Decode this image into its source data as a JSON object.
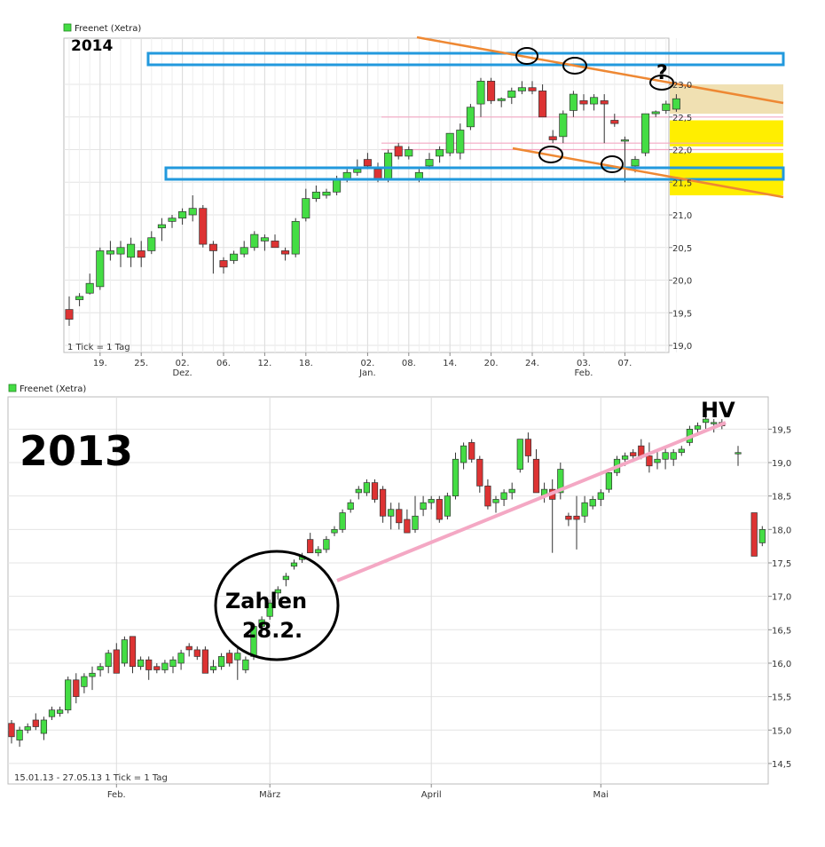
{
  "colors": {
    "up": "#44dd44",
    "down": "#dd3333",
    "blue": "#2299dd",
    "orange": "#ee8833",
    "pink": "#f4a8c4",
    "yellow": "#ffee00",
    "tan": "#eeddaa"
  },
  "chart_data": [
    {
      "type": "candlestick",
      "legend": "Freenet (Xetra)",
      "year_label": "2014",
      "footnote": "1 Tick = 1 Tag",
      "ylim": [
        19.0,
        23.3
      ],
      "yticks": [
        "19,0",
        "19,5",
        "20,0",
        "20,5",
        "21,0",
        "21,5",
        "22,0",
        "22,5",
        "23,0"
      ],
      "xticks": [
        {
          "i": 3,
          "label": "19."
        },
        {
          "i": 7,
          "label": "25."
        },
        {
          "i": 11,
          "label": "02.",
          "sub": "Dez."
        },
        {
          "i": 15,
          "label": "06."
        },
        {
          "i": 19,
          "label": "12."
        },
        {
          "i": 23,
          "label": "18."
        },
        {
          "i": 29,
          "label": "02.",
          "sub": "Jan."
        },
        {
          "i": 33,
          "label": "08."
        },
        {
          "i": 37,
          "label": "14."
        },
        {
          "i": 41,
          "label": "20."
        },
        {
          "i": 45,
          "label": "24."
        },
        {
          "i": 50,
          "label": "03.",
          "sub": "Feb."
        },
        {
          "i": 54,
          "label": "07."
        }
      ],
      "candles": [
        [
          19.55,
          19.75,
          19.3,
          19.4
        ],
        [
          19.7,
          19.8,
          19.6,
          19.75
        ],
        [
          19.8,
          20.1,
          19.78,
          19.95
        ],
        [
          19.9,
          20.5,
          19.85,
          20.45
        ],
        [
          20.4,
          20.6,
          20.3,
          20.45
        ],
        [
          20.4,
          20.6,
          20.2,
          20.5
        ],
        [
          20.35,
          20.65,
          20.2,
          20.55
        ],
        [
          20.45,
          20.6,
          20.2,
          20.35
        ],
        [
          20.45,
          20.75,
          20.4,
          20.65
        ],
        [
          20.8,
          20.95,
          20.6,
          20.85
        ],
        [
          20.9,
          21.0,
          20.8,
          20.95
        ],
        [
          20.95,
          21.1,
          20.85,
          21.05
        ],
        [
          21.0,
          21.3,
          20.9,
          21.1
        ],
        [
          21.1,
          21.15,
          20.5,
          20.55
        ],
        [
          20.55,
          20.6,
          20.1,
          20.45
        ],
        [
          20.3,
          20.35,
          20.1,
          20.2
        ],
        [
          20.3,
          20.45,
          20.25,
          20.4
        ],
        [
          20.4,
          20.6,
          20.35,
          20.5
        ],
        [
          20.5,
          20.75,
          20.45,
          20.7
        ],
        [
          20.6,
          20.7,
          20.45,
          20.65
        ],
        [
          20.6,
          20.7,
          20.5,
          20.5
        ],
        [
          20.45,
          20.5,
          20.3,
          20.4
        ],
        [
          20.4,
          20.95,
          20.35,
          20.9
        ],
        [
          20.95,
          21.4,
          20.9,
          21.25
        ],
        [
          21.25,
          21.45,
          21.2,
          21.35
        ],
        [
          21.3,
          21.4,
          21.25,
          21.35
        ],
        [
          21.35,
          21.6,
          21.3,
          21.55
        ],
        [
          21.55,
          21.7,
          21.5,
          21.65
        ],
        [
          21.65,
          21.85,
          21.6,
          21.7
        ],
        [
          21.85,
          21.95,
          21.7,
          21.75
        ],
        [
          21.7,
          21.8,
          21.5,
          21.55
        ],
        [
          21.55,
          22.0,
          21.5,
          21.95
        ],
        [
          22.05,
          22.1,
          21.85,
          21.9
        ],
        [
          21.9,
          22.05,
          21.85,
          22.0
        ],
        [
          21.55,
          21.7,
          21.5,
          21.65
        ],
        [
          21.75,
          21.95,
          21.7,
          21.85
        ],
        [
          21.9,
          22.05,
          21.8,
          22.0
        ],
        [
          21.95,
          22.25,
          21.9,
          22.25
        ],
        [
          21.95,
          22.4,
          21.85,
          22.3
        ],
        [
          22.35,
          22.7,
          22.3,
          22.65
        ],
        [
          22.7,
          23.1,
          22.5,
          23.05
        ],
        [
          23.05,
          23.1,
          22.7,
          22.75
        ],
        [
          22.75,
          22.8,
          22.65,
          22.78
        ],
        [
          22.8,
          22.95,
          22.7,
          22.9
        ],
        [
          22.9,
          23.05,
          22.85,
          22.95
        ],
        [
          22.95,
          23.05,
          22.85,
          22.9
        ],
        [
          22.9,
          23.0,
          22.5,
          22.5
        ],
        [
          22.2,
          22.3,
          22.1,
          22.15
        ],
        [
          22.2,
          22.6,
          22.1,
          22.55
        ],
        [
          22.6,
          22.9,
          22.5,
          22.85
        ],
        [
          22.75,
          22.85,
          22.6,
          22.7
        ],
        [
          22.7,
          22.85,
          22.6,
          22.8
        ],
        [
          22.75,
          22.85,
          22.1,
          22.7
        ],
        [
          22.45,
          22.55,
          22.35,
          22.4
        ],
        [
          22.15,
          22.2,
          21.5,
          22.15
        ],
        [
          21.75,
          21.9,
          21.65,
          21.85
        ],
        [
          21.95,
          22.55,
          21.9,
          22.55
        ],
        [
          22.55,
          22.6,
          22.5,
          22.58
        ],
        [
          22.6,
          22.75,
          22.55,
          22.7
        ],
        [
          22.62,
          22.85,
          22.58,
          22.78
        ]
      ],
      "circle_marks": [
        "",
        "",
        "",
        "",
        "",
        ""
      ],
      "question_mark": "?"
    },
    {
      "type": "candlestick",
      "legend": "Freenet (Xetra)",
      "year_label": "2013",
      "footnote": "15.01.13 - 27.05.13   1 Tick = 1 Tag",
      "ylim": [
        14.3,
        19.85
      ],
      "yticks": [
        "14,5",
        "15,0",
        "15,5",
        "16,0",
        "16,5",
        "17,0",
        "17,5",
        "18,0",
        "18,5",
        "19,0",
        "19,5"
      ],
      "xticks": [
        {
          "i": 13,
          "label": "Feb."
        },
        {
          "i": 32,
          "label": "März"
        },
        {
          "i": 52,
          "label": "April"
        },
        {
          "i": 73,
          "label": "Mai"
        }
      ],
      "annotation_circle_text": [
        "Zahlen",
        "28.2."
      ],
      "hv_label": "HV",
      "candles": [
        [
          15.1,
          15.15,
          14.8,
          14.9
        ],
        [
          14.85,
          15.05,
          14.75,
          15.0
        ],
        [
          15.0,
          15.1,
          14.95,
          15.05
        ],
        [
          15.15,
          15.25,
          15.0,
          15.05
        ],
        [
          14.95,
          15.2,
          14.85,
          15.15
        ],
        [
          15.2,
          15.35,
          15.15,
          15.3
        ],
        [
          15.25,
          15.35,
          15.2,
          15.3
        ],
        [
          15.3,
          15.8,
          15.25,
          15.75
        ],
        [
          15.75,
          15.85,
          15.4,
          15.5
        ],
        [
          15.65,
          15.85,
          15.55,
          15.8
        ],
        [
          15.8,
          15.95,
          15.6,
          15.85
        ],
        [
          15.9,
          16.0,
          15.8,
          15.95
        ],
        [
          15.95,
          16.2,
          15.85,
          16.15
        ],
        [
          16.2,
          16.3,
          15.85,
          15.85
        ],
        [
          16.0,
          16.4,
          15.95,
          16.35
        ],
        [
          16.4,
          16.4,
          15.85,
          15.95
        ],
        [
          15.95,
          16.1,
          15.9,
          16.05
        ],
        [
          16.05,
          16.1,
          15.75,
          15.9
        ],
        [
          15.95,
          16.0,
          15.85,
          15.9
        ],
        [
          15.9,
          16.05,
          15.85,
          16.0
        ],
        [
          15.95,
          16.1,
          15.85,
          16.05
        ],
        [
          16.0,
          16.2,
          15.9,
          16.15
        ],
        [
          16.25,
          16.3,
          16.1,
          16.2
        ],
        [
          16.2,
          16.25,
          16.05,
          16.1
        ],
        [
          16.2,
          16.25,
          15.85,
          15.85
        ],
        [
          15.9,
          16.05,
          15.85,
          15.95
        ],
        [
          15.95,
          16.15,
          15.9,
          16.1
        ],
        [
          16.15,
          16.2,
          15.95,
          16.0
        ],
        [
          16.05,
          16.25,
          15.75,
          16.15
        ],
        [
          15.9,
          16.1,
          15.85,
          16.05
        ],
        [
          16.1,
          16.55,
          16.05,
          16.55
        ],
        [
          16.55,
          16.7,
          16.45,
          16.65
        ],
        [
          16.7,
          16.95,
          16.65,
          16.9
        ],
        [
          17.05,
          17.15,
          16.95,
          17.1
        ],
        [
          17.25,
          17.35,
          17.15,
          17.3
        ],
        [
          17.45,
          17.55,
          17.4,
          17.5
        ],
        [
          17.55,
          17.65,
          17.5,
          17.6
        ],
        [
          17.85,
          17.95,
          17.65,
          17.65
        ],
        [
          17.65,
          17.75,
          17.6,
          17.7
        ],
        [
          17.7,
          17.9,
          17.65,
          17.85
        ],
        [
          17.95,
          18.05,
          17.9,
          18.0
        ],
        [
          18.0,
          18.3,
          17.95,
          18.25
        ],
        [
          18.3,
          18.45,
          18.25,
          18.4
        ],
        [
          18.55,
          18.65,
          18.45,
          18.6
        ],
        [
          18.55,
          18.75,
          18.5,
          18.7
        ],
        [
          18.7,
          18.75,
          18.4,
          18.45
        ],
        [
          18.6,
          18.65,
          18.1,
          18.2
        ],
        [
          18.2,
          18.4,
          18.0,
          18.3
        ],
        [
          18.3,
          18.4,
          18.0,
          18.1
        ],
        [
          18.15,
          18.3,
          17.95,
          17.95
        ],
        [
          18.0,
          18.5,
          17.95,
          18.2
        ],
        [
          18.3,
          18.5,
          18.2,
          18.4
        ],
        [
          18.4,
          18.5,
          18.3,
          18.45
        ],
        [
          18.45,
          18.5,
          18.1,
          18.15
        ],
        [
          18.2,
          18.55,
          18.15,
          18.5
        ],
        [
          18.5,
          19.15,
          18.45,
          19.05
        ],
        [
          19.0,
          19.3,
          18.9,
          19.25
        ],
        [
          19.3,
          19.35,
          19.0,
          19.05
        ],
        [
          19.05,
          19.1,
          18.55,
          18.65
        ],
        [
          18.65,
          18.75,
          18.3,
          18.35
        ],
        [
          18.4,
          18.5,
          18.25,
          18.45
        ],
        [
          18.45,
          18.6,
          18.35,
          18.55
        ],
        [
          18.55,
          18.7,
          18.45,
          18.6
        ],
        [
          18.9,
          19.35,
          18.85,
          19.35
        ],
        [
          19.35,
          19.45,
          19.0,
          19.1
        ],
        [
          19.05,
          19.2,
          18.55,
          18.55
        ],
        [
          18.5,
          18.7,
          18.4,
          18.6
        ],
        [
          18.6,
          18.75,
          17.65,
          18.45
        ],
        [
          18.55,
          19.0,
          18.45,
          18.9
        ],
        [
          18.2,
          18.25,
          18.05,
          18.15
        ],
        [
          18.2,
          18.5,
          17.7,
          18.15
        ],
        [
          18.2,
          18.5,
          18.1,
          18.4
        ],
        [
          18.35,
          18.5,
          18.3,
          18.45
        ],
        [
          18.45,
          18.6,
          18.35,
          18.55
        ],
        [
          18.6,
          18.85,
          18.55,
          18.85
        ],
        [
          18.85,
          19.1,
          18.8,
          19.05
        ],
        [
          19.05,
          19.15,
          18.95,
          19.1
        ],
        [
          19.15,
          19.2,
          19.05,
          19.1
        ],
        [
          19.25,
          19.35,
          19.05,
          19.1
        ],
        [
          19.1,
          19.3,
          18.85,
          18.95
        ],
        [
          19.0,
          19.2,
          18.9,
          19.05
        ],
        [
          19.05,
          19.25,
          18.9,
          19.15
        ],
        [
          19.05,
          19.2,
          18.95,
          19.15
        ],
        [
          19.15,
          19.25,
          19.1,
          19.2
        ],
        [
          19.3,
          19.55,
          19.25,
          19.5
        ],
        [
          19.5,
          19.6,
          19.4,
          19.55
        ],
        [
          19.6,
          19.7,
          19.5,
          19.65
        ],
        [
          19.6,
          19.65,
          19.45,
          19.6
        ],
        [
          19.6,
          19.65,
          19.5,
          19.55
        ],
        [
          null,
          null,
          null,
          null
        ],
        [
          19.15,
          19.25,
          18.95,
          19.15
        ],
        [
          null,
          null,
          null,
          null
        ],
        [
          18.25,
          18.25,
          17.6,
          17.6
        ],
        [
          17.8,
          18.05,
          17.75,
          18.0
        ]
      ]
    }
  ]
}
